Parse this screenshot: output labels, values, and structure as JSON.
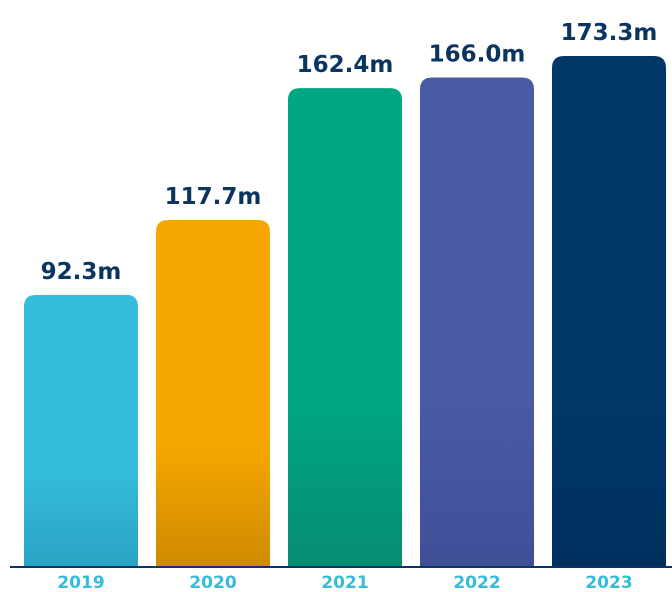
{
  "chart_data": {
    "type": "bar",
    "categories": [
      "2019",
      "2020",
      "2021",
      "2022",
      "2023"
    ],
    "values": [
      92.3,
      117.7,
      162.4,
      166.0,
      173.3
    ],
    "value_labels": [
      "92.3m",
      "117.7m",
      "162.4m",
      "166.0m",
      "173.3m"
    ],
    "unit": "m",
    "title": "",
    "xlabel": "",
    "ylabel": "",
    "ylim": [
      0,
      173.3
    ],
    "grid": false,
    "legend": "none"
  },
  "colors": {
    "bars": [
      "#35bcdc",
      "#f5a600",
      "#00a782",
      "#4a5ba6",
      "#003868"
    ],
    "bars_bottom": [
      "#2aa2c2",
      "#cf8a00",
      "#078c72",
      "#3f4f98",
      "#003060"
    ],
    "value_label": "#0b3561",
    "tick_label": "#35bcdc",
    "axis_line": "#0b3561",
    "background": "#ffffff"
  }
}
